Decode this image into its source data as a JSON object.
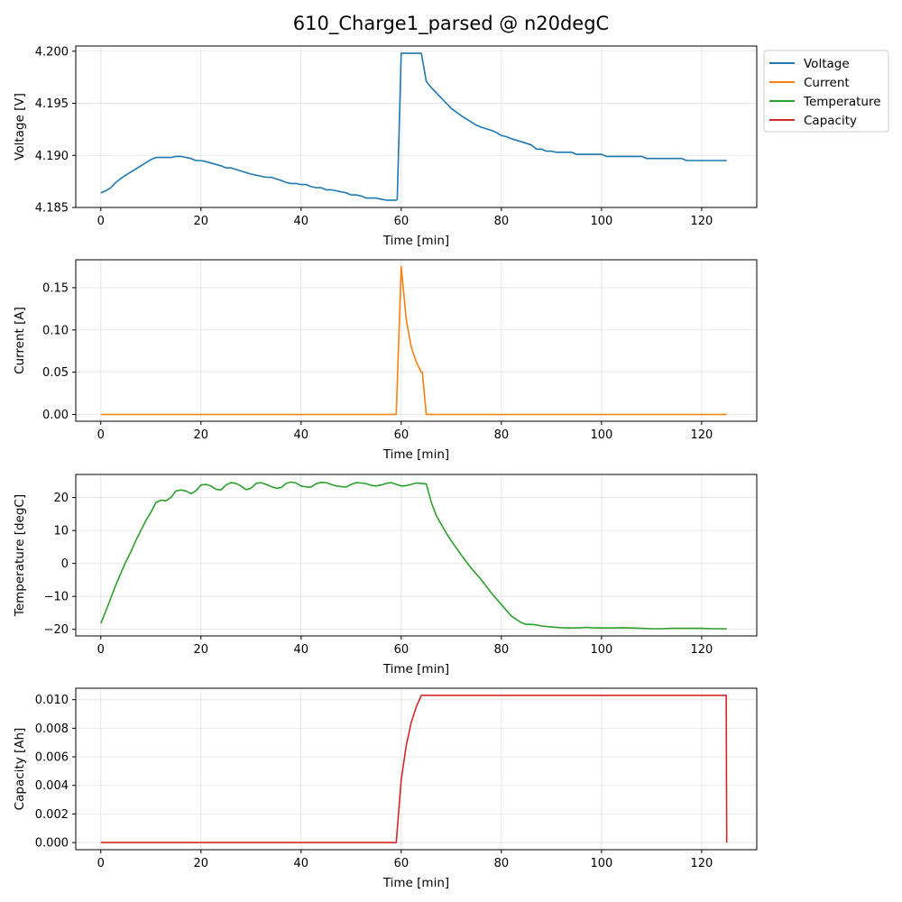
{
  "title": "610_Charge1_parsed @ n20degC",
  "legend": {
    "placement": "outside-top-right",
    "entries": [
      {
        "label": "Voltage",
        "color": "#1f77b4"
      },
      {
        "label": "Current",
        "color": "#ff7f0e"
      },
      {
        "label": "Temperature",
        "color": "#2ca02c"
      },
      {
        "label": "Capacity",
        "color": "#d62728"
      }
    ]
  },
  "chart_data": [
    {
      "type": "line",
      "xlabel": "Time [min]",
      "ylabel": "Voltage [V]",
      "xlim": [
        -5,
        131
      ],
      "ylim": [
        4.185,
        4.2005
      ],
      "xticks": [
        0,
        20,
        40,
        60,
        80,
        100,
        120
      ],
      "yticks": [
        4.185,
        4.19,
        4.195,
        4.2
      ],
      "ytick_labels": [
        "4.185",
        "4.190",
        "4.195",
        "4.200"
      ],
      "grid": true,
      "series": [
        {
          "name": "Voltage",
          "color": "#1f77b4",
          "x": [
            0,
            1,
            2,
            3,
            4,
            6,
            8,
            10,
            11,
            12,
            14,
            15,
            16,
            18,
            19,
            20,
            21,
            24,
            25,
            26,
            28,
            30,
            31,
            32,
            33,
            34,
            36,
            37,
            38,
            39,
            40,
            41,
            42,
            43,
            44,
            45,
            46,
            47,
            48,
            49,
            50,
            51,
            52,
            53,
            54,
            55,
            56,
            57,
            58,
            59,
            59.2,
            60,
            61,
            62,
            63,
            64,
            65,
            66,
            68,
            70,
            72,
            73,
            74,
            75,
            76,
            78,
            79,
            80,
            81,
            82,
            84,
            86,
            87,
            88,
            89,
            90,
            91,
            92,
            93,
            94,
            95,
            96,
            97,
            98,
            99,
            100,
            101,
            102,
            104,
            106,
            107,
            108,
            109,
            110,
            112,
            114,
            116,
            117,
            118,
            120,
            122,
            124,
            125
          ],
          "y": [
            4.1864,
            4.1866,
            4.1869,
            4.1874,
            4.1878,
            4.1884,
            4.189,
            4.1896,
            4.1898,
            4.1898,
            4.1898,
            4.1899,
            4.1899,
            4.1897,
            4.1895,
            4.1895,
            4.1894,
            4.189,
            4.1888,
            4.1888,
            4.1885,
            4.1882,
            4.1881,
            4.188,
            4.1879,
            4.1879,
            4.1876,
            4.1874,
            4.1873,
            4.1873,
            4.1872,
            4.1872,
            4.187,
            4.1869,
            4.1869,
            4.1867,
            4.1867,
            4.1866,
            4.1865,
            4.1864,
            4.1862,
            4.1862,
            4.1861,
            4.1859,
            4.1859,
            4.1859,
            4.1858,
            4.1857,
            4.1857,
            4.1857,
            4.1858,
            4.1998,
            4.1998,
            4.1998,
            4.1998,
            4.1998,
            4.1971,
            4.1965,
            4.1955,
            4.1945,
            4.1938,
            4.1935,
            4.1932,
            4.1929,
            4.1927,
            4.1924,
            4.1922,
            4.1919,
            4.1918,
            4.1916,
            4.1913,
            4.191,
            4.1906,
            4.1906,
            4.1904,
            4.1904,
            4.1903,
            4.1903,
            4.1903,
            4.1903,
            4.1901,
            4.1901,
            4.1901,
            4.1901,
            4.1901,
            4.1901,
            4.1899,
            4.1899,
            4.1899,
            4.1899,
            4.1899,
            4.1899,
            4.1897,
            4.1897,
            4.1897,
            4.1897,
            4.1897,
            4.1895,
            4.1895,
            4.1895,
            4.1895,
            4.1895,
            4.1895
          ]
        }
      ]
    },
    {
      "type": "line",
      "xlabel": "Time [min]",
      "ylabel": "Current [A]",
      "xlim": [
        -5,
        131
      ],
      "ylim": [
        -0.008,
        0.183
      ],
      "xticks": [
        0,
        20,
        40,
        60,
        80,
        100,
        120
      ],
      "yticks": [
        0,
        0.05,
        0.1,
        0.15
      ],
      "ytick_labels": [
        "0.00",
        "0.05",
        "0.10",
        "0.15"
      ],
      "grid": true,
      "series": [
        {
          "name": "Current",
          "color": "#ff7f0e",
          "x": [
            0,
            59,
            60,
            61,
            62,
            63,
            64,
            64.2,
            65,
            125
          ],
          "y": [
            0,
            0,
            0.175,
            0.112,
            0.08,
            0.062,
            0.05,
            0.05,
            0,
            0
          ]
        }
      ]
    },
    {
      "type": "line",
      "xlabel": "Time [min]",
      "ylabel": "Temperature [degC]",
      "xlim": [
        -5,
        131
      ],
      "ylim": [
        -22,
        27
      ],
      "xticks": [
        0,
        20,
        40,
        60,
        80,
        100,
        120
      ],
      "yticks": [
        -20,
        -10,
        0,
        10,
        20
      ],
      "ytick_labels": [
        "−20",
        "−10",
        "0",
        "10",
        "20"
      ],
      "grid": true,
      "series": [
        {
          "name": "Temperature",
          "color": "#2ca02c",
          "x": [
            0,
            1,
            2,
            3,
            4,
            5,
            6,
            7,
            8,
            9,
            10,
            11,
            12,
            13,
            14,
            15,
            16,
            17,
            18,
            19,
            20,
            21,
            22,
            23,
            24,
            25,
            26,
            27,
            28,
            29,
            30,
            31,
            32,
            33,
            34,
            35,
            36,
            37,
            38,
            39,
            40,
            41,
            42,
            43,
            44,
            45,
            46,
            47,
            48,
            49,
            50,
            51,
            52,
            53,
            54,
            55,
            56,
            57,
            58,
            59,
            60,
            61,
            62,
            63,
            64,
            65,
            66,
            67,
            68,
            69,
            70,
            72,
            74,
            76,
            78,
            80,
            82,
            84,
            85,
            86,
            87,
            88,
            90,
            92,
            94,
            96,
            97,
            98,
            100,
            102,
            104,
            106,
            108,
            110,
            112,
            114,
            116,
            118,
            120,
            122,
            124,
            125
          ],
          "y": [
            -18.2,
            -14.5,
            -10.5,
            -6.5,
            -3,
            0.5,
            3.5,
            7,
            10,
            13,
            15.5,
            18.5,
            19.2,
            19,
            20,
            22,
            22.3,
            22,
            21.2,
            22,
            23.8,
            24,
            23.5,
            22.5,
            22.3,
            23.8,
            24.5,
            24.3,
            23.5,
            22.4,
            22.8,
            24.3,
            24.5,
            24,
            23.3,
            22.8,
            23,
            24.3,
            24.7,
            24.4,
            23.5,
            23.2,
            23.2,
            24.2,
            24.6,
            24.5,
            24,
            23.5,
            23.3,
            23.2,
            24,
            24.5,
            24.4,
            24.2,
            23.7,
            23.5,
            23.8,
            24.3,
            24.5,
            24,
            23.5,
            23.6,
            24,
            24.4,
            24.3,
            24.1,
            18.5,
            14.5,
            11.8,
            9.2,
            6.8,
            2.5,
            -1.5,
            -5,
            -9,
            -12.5,
            -16,
            -18,
            -18.5,
            -18.5,
            -18.7,
            -19,
            -19.3,
            -19.5,
            -19.6,
            -19.5,
            -19.4,
            -19.5,
            -19.6,
            -19.6,
            -19.5,
            -19.6,
            -19.7,
            -19.8,
            -19.8,
            -19.7,
            -19.7,
            -19.7,
            -19.7,
            -19.8,
            -19.8,
            -19.8
          ]
        }
      ]
    },
    {
      "type": "line",
      "xlabel": "Time [min]",
      "ylabel": "Capacity [Ah]",
      "xlim": [
        -5,
        131
      ],
      "ylim": [
        -0.0005,
        0.0108
      ],
      "xticks": [
        0,
        20,
        40,
        60,
        80,
        100,
        120
      ],
      "yticks": [
        0,
        0.002,
        0.004,
        0.006,
        0.008,
        0.01
      ],
      "ytick_labels": [
        "0.000",
        "0.002",
        "0.004",
        "0.006",
        "0.008",
        "0.010"
      ],
      "grid": true,
      "series": [
        {
          "name": "Capacity",
          "color": "#d62728",
          "x": [
            0,
            59,
            60,
            61,
            62,
            63,
            64,
            124.9,
            125
          ],
          "y": [
            0,
            0,
            0.0044,
            0.0068,
            0.0084,
            0.0095,
            0.0103,
            0.0103,
            0
          ]
        }
      ]
    }
  ]
}
